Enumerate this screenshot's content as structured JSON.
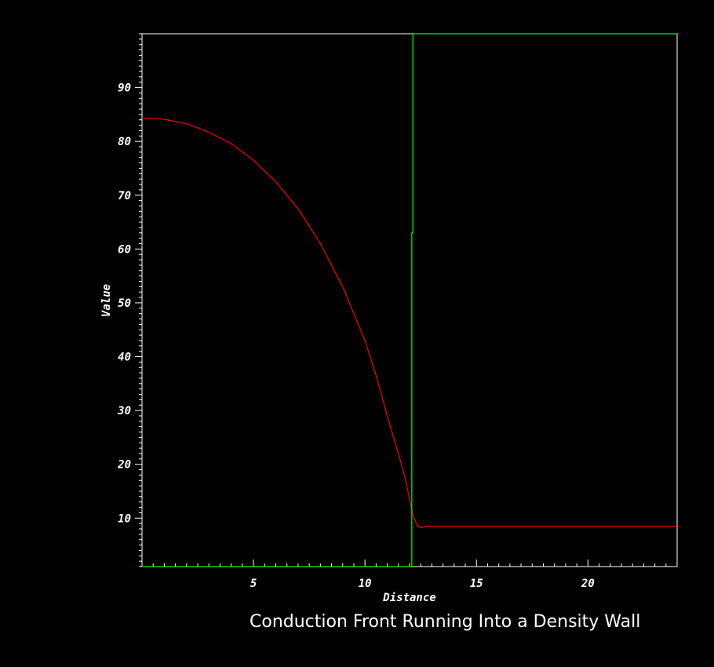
{
  "chart_data": {
    "type": "line",
    "title": "Conduction Front Running Into a Density Wall",
    "xlabel": "Distance",
    "ylabel": "Value",
    "xlim": [
      0,
      24
    ],
    "ylim": [
      1,
      100
    ],
    "x_ticks": [
      5,
      10,
      15,
      20
    ],
    "y_ticks": [
      10,
      20,
      30,
      40,
      50,
      60,
      70,
      80,
      90
    ],
    "grid": false,
    "background": "#000000",
    "axis_color": "#ffffff",
    "series": [
      {
        "color": "#ff0000",
        "x": [
          0,
          0.5,
          1,
          2,
          3,
          4,
          5,
          6,
          7,
          8,
          9,
          10,
          10.5,
          11,
          11.5,
          11.8,
          12.0,
          12.1,
          12.2,
          12.3,
          12.4,
          12.5,
          12.6,
          12.8,
          13.0,
          14,
          16,
          18,
          20,
          22,
          24
        ],
        "y": [
          84.3,
          84.3,
          84.1,
          83.3,
          81.7,
          79.6,
          76.5,
          72.5,
          67.5,
          61.0,
          53.0,
          43.0,
          36.5,
          29.0,
          22.0,
          17.5,
          13.5,
          11.5,
          10.0,
          9.0,
          8.4,
          8.2,
          8.3,
          8.5,
          8.5,
          8.5,
          8.5,
          8.5,
          8.5,
          8.5,
          8.5
        ]
      },
      {
        "color": "#00ff00",
        "x": [
          0,
          12.1,
          12.1,
          12.1,
          12.15,
          12.15,
          24
        ],
        "y": [
          1.0,
          1.0,
          24.0,
          63.0,
          63.0,
          100.0,
          100.0
        ]
      }
    ]
  }
}
